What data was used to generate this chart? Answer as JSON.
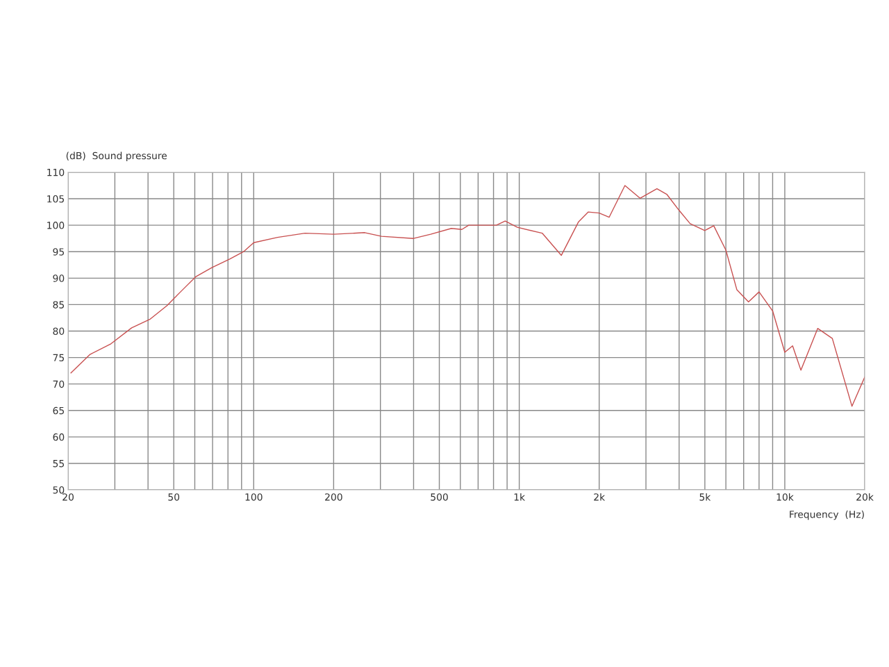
{
  "chart_data": {
    "type": "line",
    "xlabel": "Frequency  (Hz)",
    "ylabel": "(dB)  Sound pressure",
    "log": "x",
    "grid": true,
    "xlim": [
      20,
      20000
    ],
    "ylim": [
      50,
      110
    ],
    "xticks": [
      20,
      {
        "value": 30,
        "label": null
      },
      {
        "value": 40,
        "label": null
      },
      50,
      {
        "value": 60,
        "label": null
      },
      {
        "value": 70,
        "label": null
      },
      {
        "value": 80,
        "label": null
      },
      {
        "value": 90,
        "label": null
      },
      100,
      200,
      {
        "value": 300,
        "label": null
      },
      {
        "value": 400,
        "label": null
      },
      500,
      {
        "value": 600,
        "label": null
      },
      {
        "value": 700,
        "label": null
      },
      {
        "value": 800,
        "label": null
      },
      {
        "value": 900,
        "label": null
      },
      {
        "value": 1000,
        "label": "1k"
      },
      {
        "value": 2000,
        "label": "2k"
      },
      {
        "value": 3000,
        "label": null
      },
      {
        "value": 4000,
        "label": null
      },
      {
        "value": 5000,
        "label": "5k"
      },
      {
        "value": 6000,
        "label": null
      },
      {
        "value": 7000,
        "label": null
      },
      {
        "value": 8000,
        "label": null
      },
      {
        "value": 9000,
        "label": null
      },
      {
        "value": 10000,
        "label": "10k"
      },
      {
        "value": 20000,
        "label": "20k"
      }
    ],
    "yticks": [
      50,
      55,
      60,
      65,
      70,
      75,
      80,
      85,
      90,
      95,
      100,
      105,
      110
    ],
    "line_style": "solid",
    "marker": "none",
    "x": [
      20.5,
      24.2,
      29,
      34.7,
      40.6,
      47.1,
      53,
      60.6,
      69.6,
      81.2,
      91.6,
      100,
      123,
      156,
      200,
      262,
      303,
      400,
      464,
      555,
      608,
      645,
      820,
      885,
      984,
      1220,
      1440,
      1670,
      1820,
      2000,
      2180,
      2500,
      2850,
      3300,
      3600,
      4000,
      4400,
      5000,
      5400,
      6000,
      6600,
      7300,
      8000,
      9000,
      10000,
      10700,
      11500,
      13300,
      15100,
      17900,
      20000
    ],
    "series": [
      {
        "color": "#c85050",
        "values": [
          72.1,
          75.6,
          77.6,
          80.6,
          82.2,
          84.8,
          87.4,
          90.3,
          92,
          93.6,
          95,
          96.7,
          97.7,
          98.5,
          98.3,
          98.6,
          97.9,
          97.5,
          98.3,
          99.4,
          99.2,
          100,
          100,
          100.8,
          99.6,
          98.5,
          94.3,
          100.6,
          102.5,
          102.3,
          101.5,
          107.5,
          105.1,
          106.9,
          105.8,
          102.8,
          100.3,
          99,
          99.9,
          95.3,
          87.8,
          85.5,
          87.4,
          83.8,
          76,
          77.2,
          72.6,
          80.5,
          78.6,
          65.8,
          71.3
        ]
      }
    ]
  }
}
